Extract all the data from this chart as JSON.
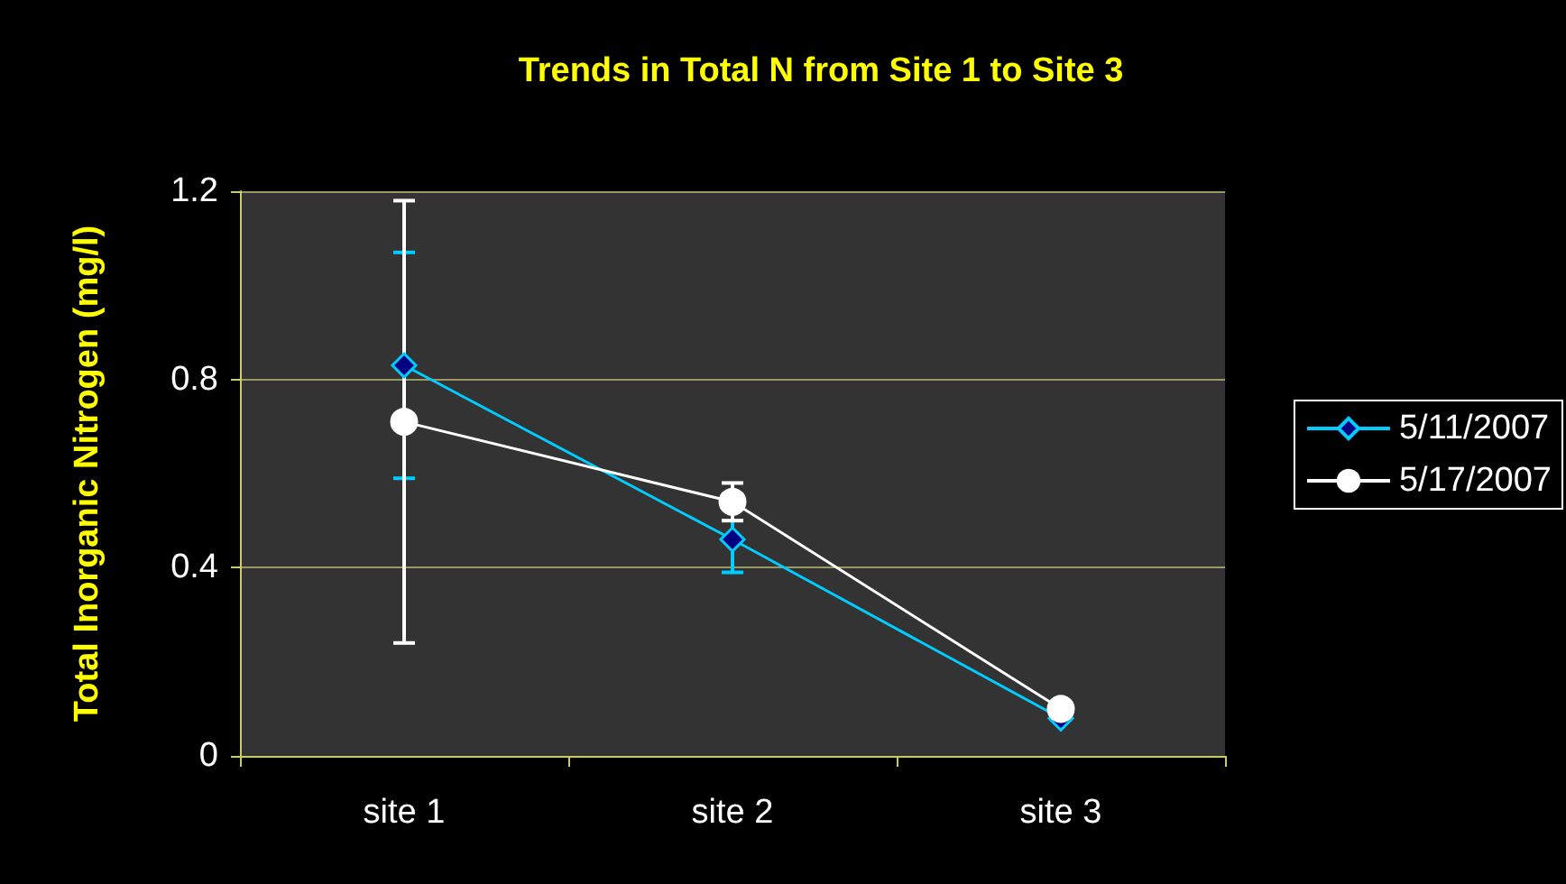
{
  "chart_data": {
    "type": "line",
    "title": "Trends in Total N from Site 1 to Site 3",
    "ylabel": "Total Inorganic Nitrogen (mg/l)",
    "categories": [
      "site 1",
      "site 2",
      "site 3"
    ],
    "series": [
      {
        "name": "5/11/2007",
        "color": "#00ccff",
        "marker": "diamond",
        "values": [
          0.83,
          0.46,
          0.08
        ],
        "errors": [
          0.24,
          0.07,
          null
        ]
      },
      {
        "name": "5/17/2007",
        "color": "#ffffff",
        "marker": "circle",
        "values": [
          0.71,
          0.54,
          0.1
        ],
        "errors": [
          0.47,
          0.04,
          null
        ]
      }
    ],
    "ylim": [
      0,
      1.2
    ],
    "yticks": [
      0,
      0.4,
      0.8,
      1.2
    ],
    "grid": "y",
    "legend": "right"
  }
}
